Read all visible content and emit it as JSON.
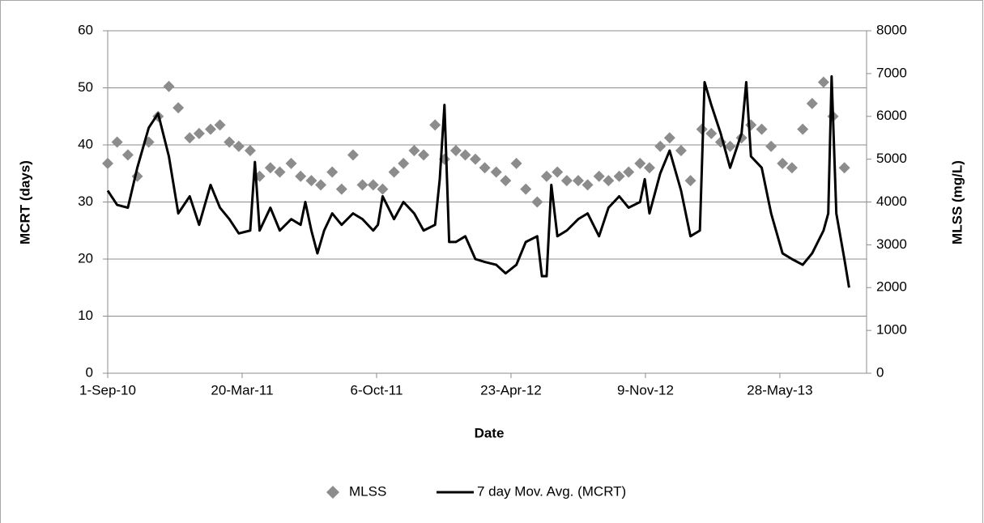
{
  "chart_data": {
    "type": "combo",
    "x_label": "Date",
    "y_label": "MCRT (days)",
    "y2_label": "MLSS (mg/L)",
    "xlim": [
      "2010-09-01",
      "2013-10-04"
    ],
    "xticks": [
      {
        "value": "2010-09-01",
        "label": "1-Sep-10"
      },
      {
        "value": "2011-03-20",
        "label": "20-Mar-11"
      },
      {
        "value": "2011-10-06",
        "label": "6-Oct-11"
      },
      {
        "value": "2012-04-23",
        "label": "23-Apr-12"
      },
      {
        "value": "2012-11-09",
        "label": "9-Nov-12"
      },
      {
        "value": "2013-05-28",
        "label": "28-May-13"
      }
    ],
    "ylim": [
      0,
      60
    ],
    "yticks": [
      0,
      10,
      20,
      30,
      40,
      50,
      60
    ],
    "y2lim": [
      0,
      8000
    ],
    "y2ticks": [
      0,
      1000,
      2000,
      3000,
      4000,
      5000,
      6000,
      7000,
      8000
    ],
    "grid": true,
    "legend": "bottom",
    "series": [
      {
        "name": "MLSS",
        "type": "scatter",
        "marker": "diamond",
        "color": "#8c8c8c",
        "axis": "y2",
        "x": [
          "2010-09-01",
          "2010-09-15",
          "2010-10-01",
          "2010-10-15",
          "2010-11-01",
          "2010-11-15",
          "2010-12-01",
          "2010-12-15",
          "2011-01-01",
          "2011-01-15",
          "2011-02-01",
          "2011-02-15",
          "2011-03-01",
          "2011-03-15",
          "2011-04-01",
          "2011-04-15",
          "2011-05-01",
          "2011-05-15",
          "2011-06-01",
          "2011-06-15",
          "2011-07-01",
          "2011-07-15",
          "2011-08-01",
          "2011-08-15",
          "2011-09-01",
          "2011-09-15",
          "2011-10-01",
          "2011-10-15",
          "2011-11-01",
          "2011-11-15",
          "2011-12-01",
          "2011-12-15",
          "2012-01-01",
          "2012-01-15",
          "2012-02-01",
          "2012-02-15",
          "2012-03-01",
          "2012-03-15",
          "2012-04-01",
          "2012-04-15",
          "2012-05-01",
          "2012-05-15",
          "2012-06-01",
          "2012-06-15",
          "2012-07-01",
          "2012-07-15",
          "2012-08-01",
          "2012-08-15",
          "2012-09-01",
          "2012-09-15",
          "2012-10-01",
          "2012-10-15",
          "2012-11-01",
          "2012-11-15",
          "2012-12-01",
          "2012-12-15",
          "2013-01-01",
          "2013-01-15",
          "2013-02-01",
          "2013-02-15",
          "2013-03-01",
          "2013-03-15",
          "2013-04-01",
          "2013-04-15",
          "2013-05-01",
          "2013-05-15",
          "2013-06-01",
          "2013-06-15",
          "2013-07-01",
          "2013-07-15",
          "2013-08-01",
          "2013-08-15",
          "2013-09-01"
        ],
        "values": [
          4900,
          5400,
          5100,
          4600,
          5400,
          6000,
          6700,
          6200,
          5500,
          5600,
          5700,
          5800,
          5400,
          5300,
          5200,
          4600,
          4800,
          4700,
          4900,
          4600,
          4500,
          4400,
          4700,
          4300,
          5100,
          4400,
          4400,
          4300,
          4700,
          4900,
          5200,
          5100,
          5800,
          5000,
          5200,
          5100,
          5000,
          4800,
          4700,
          4500,
          4900,
          4300,
          4000,
          4600,
          4700,
          4500,
          4500,
          4400,
          4600,
          4500,
          4600,
          4700,
          4900,
          4800,
          5300,
          5500,
          5200,
          4500,
          5700,
          5600,
          5400,
          5300,
          5500,
          5800,
          5700,
          5300,
          4900,
          4800,
          5700,
          6300,
          6800,
          6000,
          4800
        ]
      },
      {
        "name": "7 day Mov. Avg. (MCRT)",
        "type": "line",
        "color": "#000000",
        "x": [
          "2010-09-01",
          "2010-09-15",
          "2010-10-01",
          "2010-10-15",
          "2010-11-01",
          "2010-11-15",
          "2010-12-01",
          "2010-12-15",
          "2011-01-01",
          "2011-01-15",
          "2011-02-01",
          "2011-02-15",
          "2011-03-01",
          "2011-03-15",
          "2011-04-01",
          "2011-04-08",
          "2011-04-15",
          "2011-05-01",
          "2011-05-15",
          "2011-06-01",
          "2011-06-15",
          "2011-06-22",
          "2011-07-01",
          "2011-07-10",
          "2011-07-20",
          "2011-08-01",
          "2011-08-15",
          "2011-09-01",
          "2011-09-15",
          "2011-10-01",
          "2011-10-08",
          "2011-10-15",
          "2011-11-01",
          "2011-11-15",
          "2011-12-01",
          "2011-12-15",
          "2012-01-01",
          "2012-01-08",
          "2012-01-15",
          "2012-01-22",
          "2012-02-01",
          "2012-02-15",
          "2012-03-01",
          "2012-03-15",
          "2012-04-01",
          "2012-04-15",
          "2012-05-01",
          "2012-05-15",
          "2012-06-01",
          "2012-06-08",
          "2012-06-15",
          "2012-06-22",
          "2012-07-01",
          "2012-07-15",
          "2012-08-01",
          "2012-08-15",
          "2012-09-01",
          "2012-09-15",
          "2012-10-01",
          "2012-10-15",
          "2012-11-01",
          "2012-11-08",
          "2012-11-15",
          "2012-12-01",
          "2012-12-15",
          "2013-01-01",
          "2013-01-15",
          "2013-01-29",
          "2013-02-05",
          "2013-02-15",
          "2013-03-01",
          "2013-03-15",
          "2013-04-01",
          "2013-04-08",
          "2013-04-15",
          "2013-05-01",
          "2013-05-15",
          "2013-06-01",
          "2013-06-15",
          "2013-07-01",
          "2013-07-15",
          "2013-08-01",
          "2013-08-08",
          "2013-08-13",
          "2013-08-20",
          "2013-09-01",
          "2013-09-08"
        ],
        "values": [
          32,
          29.5,
          29,
          36,
          43,
          45.5,
          38,
          28,
          31,
          26,
          33,
          29,
          27,
          24.5,
          25,
          37,
          25,
          29,
          25,
          27,
          26,
          30,
          25,
          21,
          25,
          28,
          26,
          28,
          27,
          25,
          26,
          31,
          27,
          30,
          28,
          25,
          26,
          34,
          47,
          23,
          23,
          24,
          20,
          19.5,
          19,
          17.5,
          19,
          23,
          24,
          17,
          17,
          33,
          24,
          25,
          27,
          28,
          24,
          29,
          31,
          29,
          30,
          34,
          28,
          35,
          39,
          32,
          24,
          25,
          51,
          47,
          42,
          36,
          42,
          51,
          38,
          36,
          28,
          21,
          20,
          19,
          21,
          25,
          28,
          52,
          28,
          20,
          15
        ]
      }
    ]
  }
}
